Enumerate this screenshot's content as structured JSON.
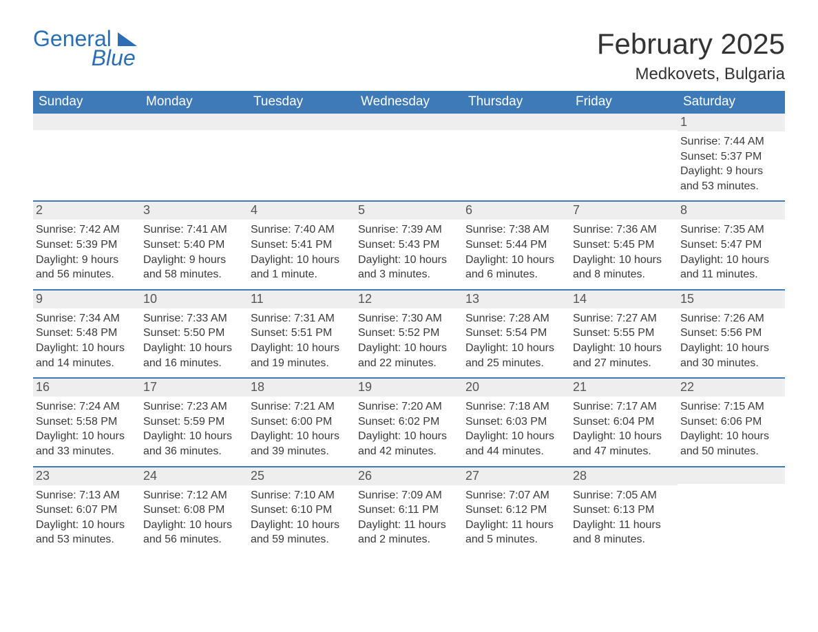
{
  "brand": {
    "word1": "General",
    "word2": "Blue",
    "accent_color": "#2a6fb5"
  },
  "title": {
    "month": "February 2025",
    "location": "Medkovets, Bulgaria"
  },
  "colors": {
    "header_bg": "#3e7ab8",
    "header_text": "#ffffff",
    "daynum_bg": "#eeeeee",
    "week_divider": "#3e7ab8",
    "body_text": "#3a3a3a",
    "page_bg": "#ffffff"
  },
  "days_of_week": [
    "Sunday",
    "Monday",
    "Tuesday",
    "Wednesday",
    "Thursday",
    "Friday",
    "Saturday"
  ],
  "weeks": [
    [
      {
        "n": "",
        "sunrise": "",
        "sunset": "",
        "daylight1": "",
        "daylight2": ""
      },
      {
        "n": "",
        "sunrise": "",
        "sunset": "",
        "daylight1": "",
        "daylight2": ""
      },
      {
        "n": "",
        "sunrise": "",
        "sunset": "",
        "daylight1": "",
        "daylight2": ""
      },
      {
        "n": "",
        "sunrise": "",
        "sunset": "",
        "daylight1": "",
        "daylight2": ""
      },
      {
        "n": "",
        "sunrise": "",
        "sunset": "",
        "daylight1": "",
        "daylight2": ""
      },
      {
        "n": "",
        "sunrise": "",
        "sunset": "",
        "daylight1": "",
        "daylight2": ""
      },
      {
        "n": "1",
        "sunrise": "Sunrise: 7:44 AM",
        "sunset": "Sunset: 5:37 PM",
        "daylight1": "Daylight: 9 hours",
        "daylight2": "and 53 minutes."
      }
    ],
    [
      {
        "n": "2",
        "sunrise": "Sunrise: 7:42 AM",
        "sunset": "Sunset: 5:39 PM",
        "daylight1": "Daylight: 9 hours",
        "daylight2": "and 56 minutes."
      },
      {
        "n": "3",
        "sunrise": "Sunrise: 7:41 AM",
        "sunset": "Sunset: 5:40 PM",
        "daylight1": "Daylight: 9 hours",
        "daylight2": "and 58 minutes."
      },
      {
        "n": "4",
        "sunrise": "Sunrise: 7:40 AM",
        "sunset": "Sunset: 5:41 PM",
        "daylight1": "Daylight: 10 hours",
        "daylight2": "and 1 minute."
      },
      {
        "n": "5",
        "sunrise": "Sunrise: 7:39 AM",
        "sunset": "Sunset: 5:43 PM",
        "daylight1": "Daylight: 10 hours",
        "daylight2": "and 3 minutes."
      },
      {
        "n": "6",
        "sunrise": "Sunrise: 7:38 AM",
        "sunset": "Sunset: 5:44 PM",
        "daylight1": "Daylight: 10 hours",
        "daylight2": "and 6 minutes."
      },
      {
        "n": "7",
        "sunrise": "Sunrise: 7:36 AM",
        "sunset": "Sunset: 5:45 PM",
        "daylight1": "Daylight: 10 hours",
        "daylight2": "and 8 minutes."
      },
      {
        "n": "8",
        "sunrise": "Sunrise: 7:35 AM",
        "sunset": "Sunset: 5:47 PM",
        "daylight1": "Daylight: 10 hours",
        "daylight2": "and 11 minutes."
      }
    ],
    [
      {
        "n": "9",
        "sunrise": "Sunrise: 7:34 AM",
        "sunset": "Sunset: 5:48 PM",
        "daylight1": "Daylight: 10 hours",
        "daylight2": "and 14 minutes."
      },
      {
        "n": "10",
        "sunrise": "Sunrise: 7:33 AM",
        "sunset": "Sunset: 5:50 PM",
        "daylight1": "Daylight: 10 hours",
        "daylight2": "and 16 minutes."
      },
      {
        "n": "11",
        "sunrise": "Sunrise: 7:31 AM",
        "sunset": "Sunset: 5:51 PM",
        "daylight1": "Daylight: 10 hours",
        "daylight2": "and 19 minutes."
      },
      {
        "n": "12",
        "sunrise": "Sunrise: 7:30 AM",
        "sunset": "Sunset: 5:52 PM",
        "daylight1": "Daylight: 10 hours",
        "daylight2": "and 22 minutes."
      },
      {
        "n": "13",
        "sunrise": "Sunrise: 7:28 AM",
        "sunset": "Sunset: 5:54 PM",
        "daylight1": "Daylight: 10 hours",
        "daylight2": "and 25 minutes."
      },
      {
        "n": "14",
        "sunrise": "Sunrise: 7:27 AM",
        "sunset": "Sunset: 5:55 PM",
        "daylight1": "Daylight: 10 hours",
        "daylight2": "and 27 minutes."
      },
      {
        "n": "15",
        "sunrise": "Sunrise: 7:26 AM",
        "sunset": "Sunset: 5:56 PM",
        "daylight1": "Daylight: 10 hours",
        "daylight2": "and 30 minutes."
      }
    ],
    [
      {
        "n": "16",
        "sunrise": "Sunrise: 7:24 AM",
        "sunset": "Sunset: 5:58 PM",
        "daylight1": "Daylight: 10 hours",
        "daylight2": "and 33 minutes."
      },
      {
        "n": "17",
        "sunrise": "Sunrise: 7:23 AM",
        "sunset": "Sunset: 5:59 PM",
        "daylight1": "Daylight: 10 hours",
        "daylight2": "and 36 minutes."
      },
      {
        "n": "18",
        "sunrise": "Sunrise: 7:21 AM",
        "sunset": "Sunset: 6:00 PM",
        "daylight1": "Daylight: 10 hours",
        "daylight2": "and 39 minutes."
      },
      {
        "n": "19",
        "sunrise": "Sunrise: 7:20 AM",
        "sunset": "Sunset: 6:02 PM",
        "daylight1": "Daylight: 10 hours",
        "daylight2": "and 42 minutes."
      },
      {
        "n": "20",
        "sunrise": "Sunrise: 7:18 AM",
        "sunset": "Sunset: 6:03 PM",
        "daylight1": "Daylight: 10 hours",
        "daylight2": "and 44 minutes."
      },
      {
        "n": "21",
        "sunrise": "Sunrise: 7:17 AM",
        "sunset": "Sunset: 6:04 PM",
        "daylight1": "Daylight: 10 hours",
        "daylight2": "and 47 minutes."
      },
      {
        "n": "22",
        "sunrise": "Sunrise: 7:15 AM",
        "sunset": "Sunset: 6:06 PM",
        "daylight1": "Daylight: 10 hours",
        "daylight2": "and 50 minutes."
      }
    ],
    [
      {
        "n": "23",
        "sunrise": "Sunrise: 7:13 AM",
        "sunset": "Sunset: 6:07 PM",
        "daylight1": "Daylight: 10 hours",
        "daylight2": "and 53 minutes."
      },
      {
        "n": "24",
        "sunrise": "Sunrise: 7:12 AM",
        "sunset": "Sunset: 6:08 PM",
        "daylight1": "Daylight: 10 hours",
        "daylight2": "and 56 minutes."
      },
      {
        "n": "25",
        "sunrise": "Sunrise: 7:10 AM",
        "sunset": "Sunset: 6:10 PM",
        "daylight1": "Daylight: 10 hours",
        "daylight2": "and 59 minutes."
      },
      {
        "n": "26",
        "sunrise": "Sunrise: 7:09 AM",
        "sunset": "Sunset: 6:11 PM",
        "daylight1": "Daylight: 11 hours",
        "daylight2": "and 2 minutes."
      },
      {
        "n": "27",
        "sunrise": "Sunrise: 7:07 AM",
        "sunset": "Sunset: 6:12 PM",
        "daylight1": "Daylight: 11 hours",
        "daylight2": "and 5 minutes."
      },
      {
        "n": "28",
        "sunrise": "Sunrise: 7:05 AM",
        "sunset": "Sunset: 6:13 PM",
        "daylight1": "Daylight: 11 hours",
        "daylight2": "and 8 minutes."
      },
      {
        "n": "",
        "sunrise": "",
        "sunset": "",
        "daylight1": "",
        "daylight2": ""
      }
    ]
  ]
}
